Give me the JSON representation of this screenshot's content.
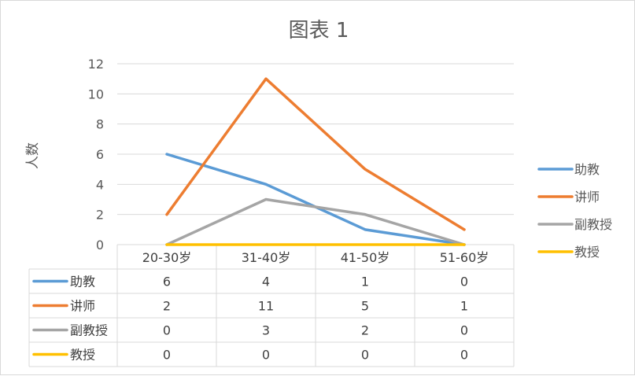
{
  "chart_data": {
    "type": "line",
    "title": "图表 1",
    "ylabel": "人数",
    "xlabel": "",
    "categories": [
      "20-30岁",
      "31-40岁",
      "41-50岁",
      "51-60岁"
    ],
    "ylim": [
      0,
      12
    ],
    "yticks": [
      0,
      2,
      4,
      6,
      8,
      10,
      12
    ],
    "grid": true,
    "legend_position": "right",
    "data_table": true,
    "series": [
      {
        "name": "助教",
        "values": [
          6,
          4,
          1,
          0
        ],
        "color": "#5b9bd5"
      },
      {
        "name": "讲师",
        "values": [
          2,
          11,
          5,
          1
        ],
        "color": "#ed7d31"
      },
      {
        "name": "副教授",
        "values": [
          0,
          3,
          2,
          0
        ],
        "color": "#a5a5a5"
      },
      {
        "name": "教授",
        "values": [
          0,
          0,
          0,
          0
        ],
        "color": "#ffc000"
      }
    ]
  }
}
